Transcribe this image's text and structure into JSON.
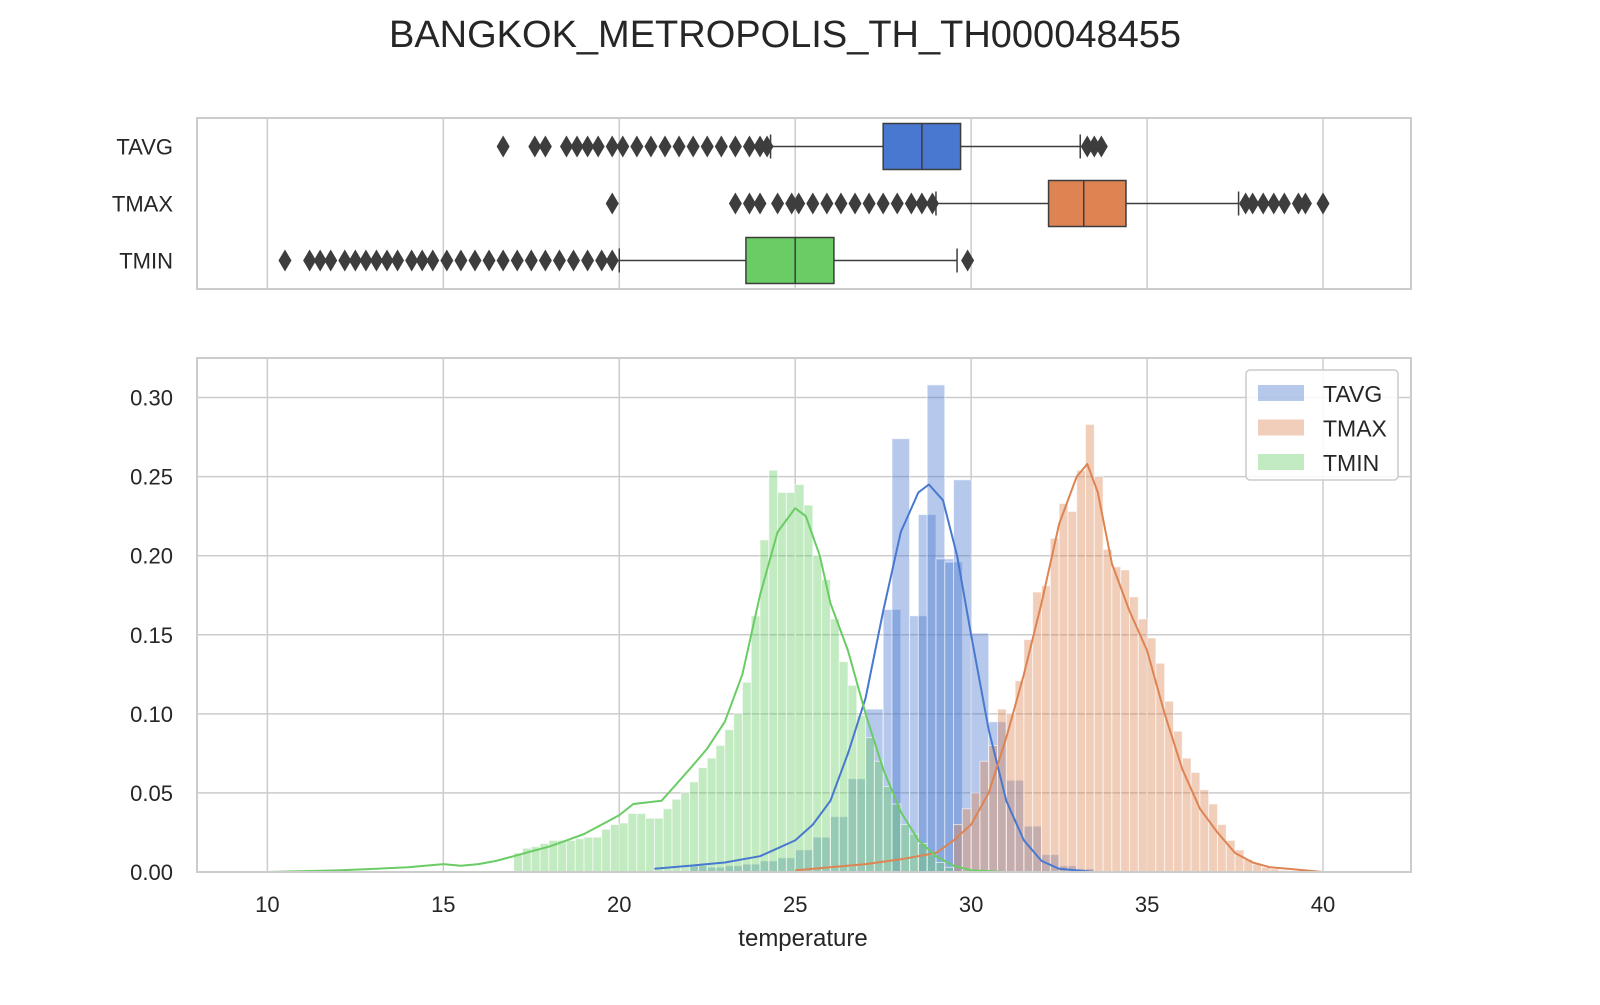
{
  "chart_data": {
    "title": "BANGKOK_METROPOLIS_TH_TH000048455",
    "xlabel": "temperature",
    "x_ticks": [
      10,
      15,
      20,
      25,
      30,
      35,
      40
    ],
    "xlim": [
      8,
      42.5
    ],
    "grid": true,
    "colors": {
      "TAVG": "#4878cf",
      "TMAX": "#dd8452",
      "TMIN": "#6acc64"
    },
    "boxplot": {
      "type": "box",
      "categories": [
        "TAVG",
        "TMAX",
        "TMIN"
      ],
      "series": [
        {
          "name": "TAVG",
          "q1": 27.5,
          "median": 28.6,
          "q3": 29.7,
          "whisker_low": 24.3,
          "whisker_high": 33.1,
          "outliers": [
            16.7,
            17.6,
            17.9,
            18.5,
            18.8,
            19.1,
            19.4,
            19.8,
            20.1,
            20.5,
            20.9,
            21.3,
            21.7,
            22.1,
            22.5,
            22.9,
            23.3,
            23.7,
            24.0,
            24.2,
            33.3,
            33.5,
            33.7
          ]
        },
        {
          "name": "TMAX",
          "q1": 32.2,
          "median": 33.2,
          "q3": 34.4,
          "whisker_low": 29.0,
          "whisker_high": 37.6,
          "outliers": [
            19.8,
            23.3,
            23.7,
            24.0,
            24.5,
            24.9,
            25.1,
            25.5,
            25.9,
            26.3,
            26.7,
            27.1,
            27.5,
            27.9,
            28.3,
            28.6,
            28.9,
            37.8,
            38.0,
            38.3,
            38.6,
            38.9,
            39.3,
            39.5,
            40.0
          ]
        },
        {
          "name": "TMIN",
          "q1": 23.6,
          "median": 25.0,
          "q3": 26.1,
          "whisker_low": 20.0,
          "whisker_high": 29.6,
          "outliers": [
            10.5,
            11.2,
            11.5,
            11.8,
            12.2,
            12.5,
            12.8,
            13.1,
            13.4,
            13.7,
            14.1,
            14.4,
            14.7,
            15.1,
            15.5,
            15.9,
            16.3,
            16.7,
            17.1,
            17.5,
            17.9,
            18.3,
            18.7,
            19.1,
            19.5,
            19.8,
            29.9
          ]
        }
      ]
    },
    "histogram": {
      "type": "bar",
      "ylim": [
        0,
        0.325
      ],
      "y_ticks": [
        0.0,
        0.05,
        0.1,
        0.15,
        0.2,
        0.25,
        0.3
      ],
      "legend": {
        "placement": "top-right",
        "entries": [
          "TAVG",
          "TMAX",
          "TMIN"
        ]
      },
      "series": [
        {
          "name": "TAVG",
          "bin_width": 0.5,
          "bins": [
            [
              22.0,
              0.004
            ],
            [
              22.5,
              0.003
            ],
            [
              23.0,
              0.004
            ],
            [
              23.5,
              0.005
            ],
            [
              24.0,
              0.007
            ],
            [
              24.5,
              0.009
            ],
            [
              25.0,
              0.014
            ],
            [
              25.5,
              0.022
            ],
            [
              26.0,
              0.035
            ],
            [
              26.5,
              0.059
            ],
            [
              27.0,
              0.103
            ],
            [
              27.5,
              0.166
            ],
            [
              27.75,
              0.274
            ],
            [
              28.25,
              0.162
            ],
            [
              28.5,
              0.226
            ],
            [
              28.75,
              0.308
            ],
            [
              29.0,
              0.198
            ],
            [
              29.25,
              0.196
            ],
            [
              29.5,
              0.248
            ],
            [
              30.0,
              0.151
            ],
            [
              30.5,
              0.095
            ],
            [
              31.0,
              0.058
            ],
            [
              31.5,
              0.029
            ],
            [
              32.0,
              0.011
            ],
            [
              32.5,
              0.004
            ],
            [
              33.0,
              0.002
            ]
          ],
          "kde": [
            [
              21.0,
              0.002
            ],
            [
              22.0,
              0.004
            ],
            [
              23.0,
              0.006
            ],
            [
              24.0,
              0.01
            ],
            [
              24.5,
              0.015
            ],
            [
              25.0,
              0.02
            ],
            [
              25.5,
              0.03
            ],
            [
              26.0,
              0.045
            ],
            [
              26.5,
              0.075
            ],
            [
              27.0,
              0.11
            ],
            [
              27.5,
              0.165
            ],
            [
              28.0,
              0.215
            ],
            [
              28.5,
              0.24
            ],
            [
              28.8,
              0.245
            ],
            [
              29.2,
              0.235
            ],
            [
              29.6,
              0.2
            ],
            [
              30.0,
              0.15
            ],
            [
              30.5,
              0.09
            ],
            [
              31.0,
              0.045
            ],
            [
              31.5,
              0.02
            ],
            [
              32.0,
              0.007
            ],
            [
              32.5,
              0.002
            ],
            [
              33.5,
              0.0
            ]
          ]
        },
        {
          "name": "TMAX",
          "bin_width": 0.25,
          "bins": [
            [
              29.5,
              0.03
            ],
            [
              29.75,
              0.04
            ],
            [
              30.0,
              0.05
            ],
            [
              30.25,
              0.07
            ],
            [
              30.5,
              0.08
            ],
            [
              30.75,
              0.103
            ],
            [
              31.0,
              0.1
            ],
            [
              31.25,
              0.121
            ],
            [
              31.5,
              0.147
            ],
            [
              31.75,
              0.177
            ],
            [
              32.0,
              0.181
            ],
            [
              32.25,
              0.211
            ],
            [
              32.5,
              0.233
            ],
            [
              32.75,
              0.228
            ],
            [
              33.0,
              0.254
            ],
            [
              33.25,
              0.283
            ],
            [
              33.5,
              0.25
            ],
            [
              33.75,
              0.204
            ],
            [
              34.0,
              0.193
            ],
            [
              34.25,
              0.191
            ],
            [
              34.5,
              0.174
            ],
            [
              34.75,
              0.16
            ],
            [
              35.0,
              0.148
            ],
            [
              35.25,
              0.132
            ],
            [
              35.5,
              0.108
            ],
            [
              35.75,
              0.089
            ],
            [
              36.0,
              0.072
            ],
            [
              36.25,
              0.063
            ],
            [
              36.5,
              0.052
            ],
            [
              36.75,
              0.043
            ],
            [
              37.0,
              0.03
            ],
            [
              37.25,
              0.02
            ],
            [
              37.5,
              0.014
            ],
            [
              37.75,
              0.008
            ],
            [
              38.0,
              0.005
            ],
            [
              38.25,
              0.003
            ],
            [
              38.5,
              0.002
            ],
            [
              38.75,
              0.001
            ]
          ],
          "kde": [
            [
              25.0,
              0.001
            ],
            [
              26.0,
              0.003
            ],
            [
              27.0,
              0.005
            ],
            [
              28.0,
              0.008
            ],
            [
              29.0,
              0.012
            ],
            [
              29.5,
              0.02
            ],
            [
              30.0,
              0.03
            ],
            [
              30.5,
              0.05
            ],
            [
              31.0,
              0.085
            ],
            [
              31.5,
              0.125
            ],
            [
              32.0,
              0.17
            ],
            [
              32.5,
              0.22
            ],
            [
              33.0,
              0.25
            ],
            [
              33.3,
              0.258
            ],
            [
              33.6,
              0.24
            ],
            [
              34.0,
              0.195
            ],
            [
              34.5,
              0.165
            ],
            [
              35.0,
              0.14
            ],
            [
              35.5,
              0.1
            ],
            [
              36.0,
              0.065
            ],
            [
              36.5,
              0.04
            ],
            [
              37.0,
              0.025
            ],
            [
              37.5,
              0.012
            ],
            [
              38.0,
              0.006
            ],
            [
              38.5,
              0.003
            ],
            [
              39.0,
              0.002
            ],
            [
              40.0,
              0.0
            ]
          ]
        },
        {
          "name": "TMIN",
          "bin_width": 0.25,
          "bins": [
            [
              17.0,
              0.012
            ],
            [
              17.25,
              0.015
            ],
            [
              17.5,
              0.016
            ],
            [
              17.75,
              0.018
            ],
            [
              18.0,
              0.02
            ],
            [
              18.25,
              0.02
            ],
            [
              18.5,
              0.02
            ],
            [
              18.75,
              0.021
            ],
            [
              19.0,
              0.022
            ],
            [
              19.25,
              0.022
            ],
            [
              19.5,
              0.027
            ],
            [
              19.75,
              0.03
            ],
            [
              20.0,
              0.031
            ],
            [
              20.25,
              0.037
            ],
            [
              20.5,
              0.037
            ],
            [
              20.75,
              0.034
            ],
            [
              21.0,
              0.034
            ],
            [
              21.25,
              0.04
            ],
            [
              21.5,
              0.046
            ],
            [
              21.75,
              0.05
            ],
            [
              22.0,
              0.057
            ],
            [
              22.25,
              0.066
            ],
            [
              22.5,
              0.072
            ],
            [
              22.75,
              0.08
            ],
            [
              23.0,
              0.09
            ],
            [
              23.25,
              0.1
            ],
            [
              23.5,
              0.12
            ],
            [
              23.75,
              0.162
            ],
            [
              24.0,
              0.21
            ],
            [
              24.25,
              0.254
            ],
            [
              24.5,
              0.24
            ],
            [
              24.75,
              0.24
            ],
            [
              25.0,
              0.245
            ],
            [
              25.25,
              0.232
            ],
            [
              25.5,
              0.2
            ],
            [
              25.75,
              0.185
            ],
            [
              26.0,
              0.16
            ],
            [
              26.25,
              0.133
            ],
            [
              26.5,
              0.118
            ],
            [
              26.75,
              0.099
            ],
            [
              27.0,
              0.085
            ],
            [
              27.25,
              0.07
            ],
            [
              27.5,
              0.054
            ],
            [
              27.75,
              0.043
            ],
            [
              28.0,
              0.03
            ],
            [
              28.25,
              0.024
            ],
            [
              28.5,
              0.018
            ],
            [
              28.75,
              0.011
            ],
            [
              29.0,
              0.006
            ],
            [
              29.25,
              0.003
            ]
          ],
          "kde": [
            [
              10.0,
              0.0
            ],
            [
              12.0,
              0.001
            ],
            [
              14.0,
              0.003
            ],
            [
              15.0,
              0.005
            ],
            [
              15.5,
              0.004
            ],
            [
              16.0,
              0.005
            ],
            [
              16.5,
              0.007
            ],
            [
              17.0,
              0.01
            ],
            [
              17.5,
              0.013
            ],
            [
              18.0,
              0.016
            ],
            [
              18.5,
              0.02
            ],
            [
              19.0,
              0.024
            ],
            [
              19.5,
              0.03
            ],
            [
              20.0,
              0.036
            ],
            [
              20.4,
              0.043
            ],
            [
              20.8,
              0.044
            ],
            [
              21.2,
              0.045
            ],
            [
              21.6,
              0.055
            ],
            [
              22.0,
              0.065
            ],
            [
              22.5,
              0.078
            ],
            [
              23.0,
              0.095
            ],
            [
              23.5,
              0.125
            ],
            [
              24.0,
              0.175
            ],
            [
              24.5,
              0.215
            ],
            [
              25.0,
              0.23
            ],
            [
              25.3,
              0.225
            ],
            [
              25.7,
              0.2
            ],
            [
              26.0,
              0.17
            ],
            [
              26.5,
              0.14
            ],
            [
              27.0,
              0.1
            ],
            [
              27.5,
              0.065
            ],
            [
              28.0,
              0.038
            ],
            [
              28.5,
              0.02
            ],
            [
              29.0,
              0.01
            ],
            [
              29.5,
              0.004
            ],
            [
              30.0,
              0.001
            ],
            [
              31.0,
              0.0
            ]
          ]
        }
      ]
    }
  }
}
